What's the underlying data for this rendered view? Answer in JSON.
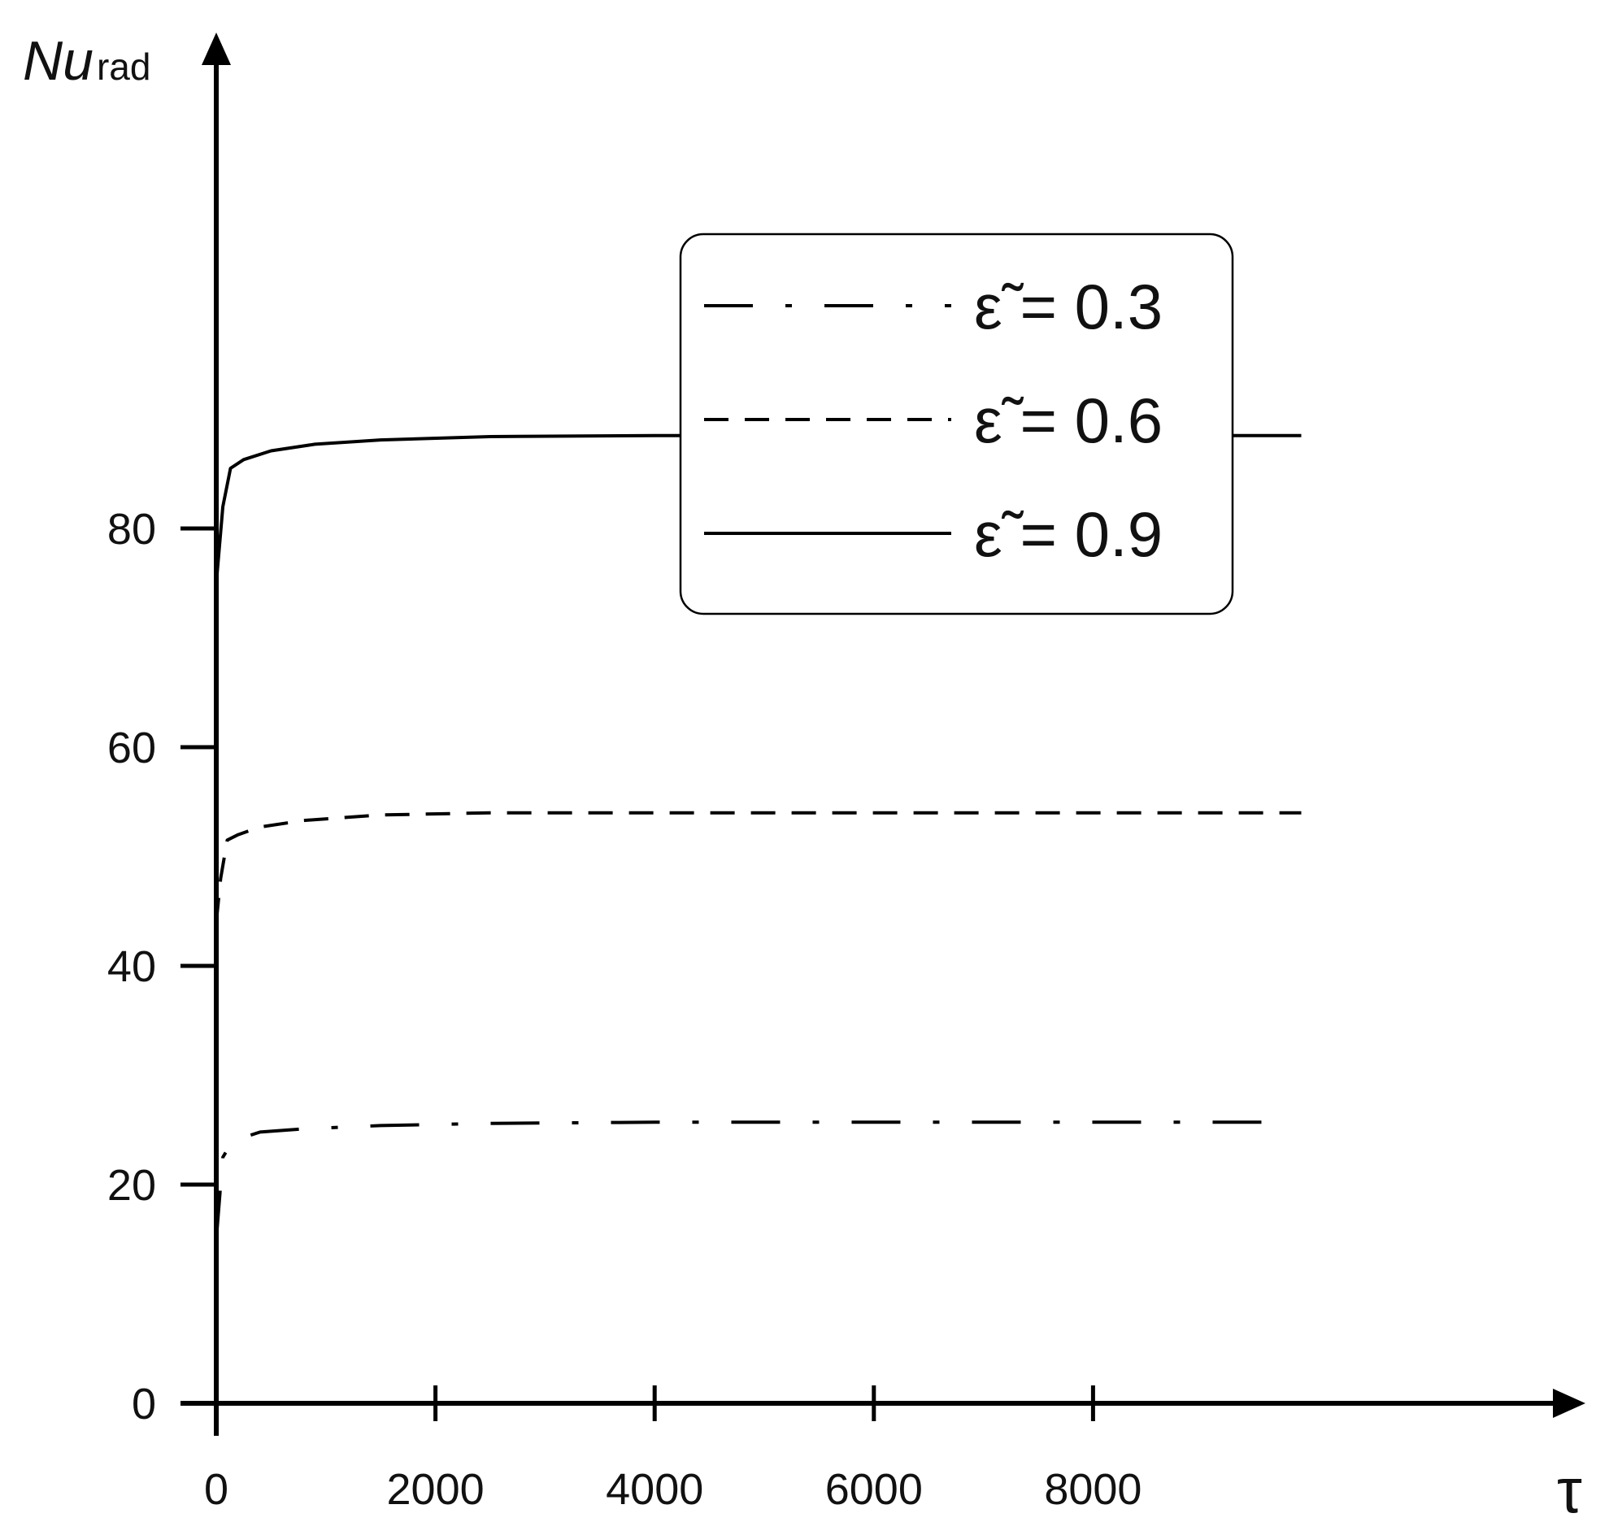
{
  "chart_data": {
    "type": "line",
    "xlabel": "τ",
    "ylabel": {
      "main": "Nu",
      "sub": "rad"
    },
    "xlim": [
      0,
      9900
    ],
    "ylim": [
      0,
      100
    ],
    "xticks": [
      0,
      2000,
      4000,
      6000,
      8000
    ],
    "yticks": [
      0,
      20,
      40,
      60,
      80
    ],
    "grid": false,
    "legend_position": "top-right",
    "series": [
      {
        "name": "ε̃ = 0.3",
        "dash": "dash-dot",
        "points": [
          [
            0,
            15
          ],
          [
            60,
            22.5
          ],
          [
            150,
            24
          ],
          [
            400,
            24.8
          ],
          [
            800,
            25.1
          ],
          [
            1500,
            25.4
          ],
          [
            2500,
            25.6
          ],
          [
            4000,
            25.7
          ],
          [
            6000,
            25.7
          ],
          [
            8000,
            25.7
          ],
          [
            9800,
            25.7
          ]
        ]
      },
      {
        "name": "ε̃ = 0.6",
        "dash": "dashed",
        "points": [
          [
            0,
            44
          ],
          [
            40,
            48
          ],
          [
            100,
            51.5
          ],
          [
            200,
            52
          ],
          [
            400,
            52.7
          ],
          [
            800,
            53.3
          ],
          [
            1500,
            53.8
          ],
          [
            2500,
            54
          ],
          [
            4000,
            54
          ],
          [
            6000,
            54
          ],
          [
            8000,
            54
          ],
          [
            9900,
            54
          ]
        ]
      },
      {
        "name": "ε̃ = 0.9",
        "dash": "solid",
        "points": [
          [
            0,
            75
          ],
          [
            60,
            82
          ],
          [
            130,
            85.5
          ],
          [
            250,
            86.3
          ],
          [
            500,
            87.1
          ],
          [
            900,
            87.7
          ],
          [
            1500,
            88.1
          ],
          [
            2500,
            88.4
          ],
          [
            4000,
            88.5
          ],
          [
            6000,
            88.5
          ],
          [
            8000,
            88.5
          ],
          [
            9900,
            88.5
          ]
        ]
      }
    ]
  }
}
